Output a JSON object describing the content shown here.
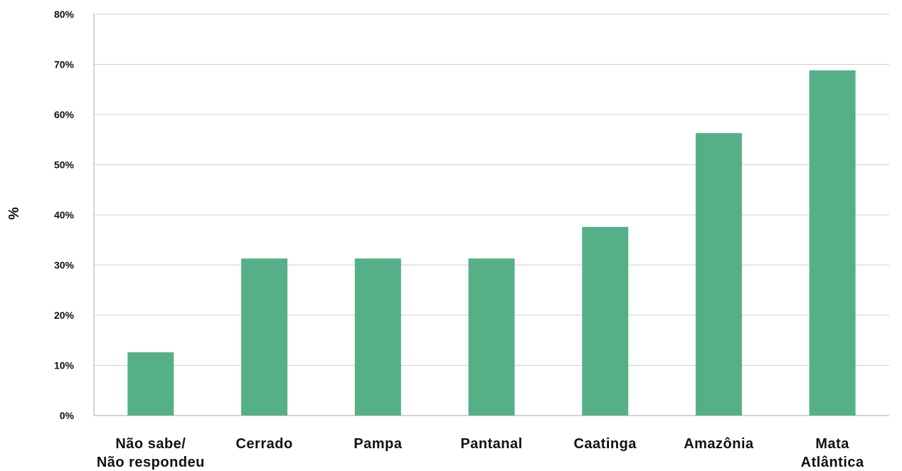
{
  "chart_data": {
    "type": "bar",
    "ylabel": "%",
    "ylim": [
      0,
      80
    ],
    "yticks": [
      "0%",
      "10%",
      "20%",
      "30%",
      "40%",
      "50%",
      "60%",
      "70%",
      "80%"
    ],
    "categories": [
      [
        "Não sabe/",
        "Não respondeu"
      ],
      [
        "Cerrado"
      ],
      [
        "Pampa"
      ],
      [
        "Pantanal"
      ],
      [
        "Caatinga"
      ],
      [
        "Amazônia"
      ],
      [
        "Mata",
        "Atlântica"
      ]
    ],
    "values": [
      12.6,
      31.3,
      31.3,
      31.3,
      37.6,
      56.3,
      68.8
    ],
    "bar_color": "#55b088",
    "grid": true
  }
}
